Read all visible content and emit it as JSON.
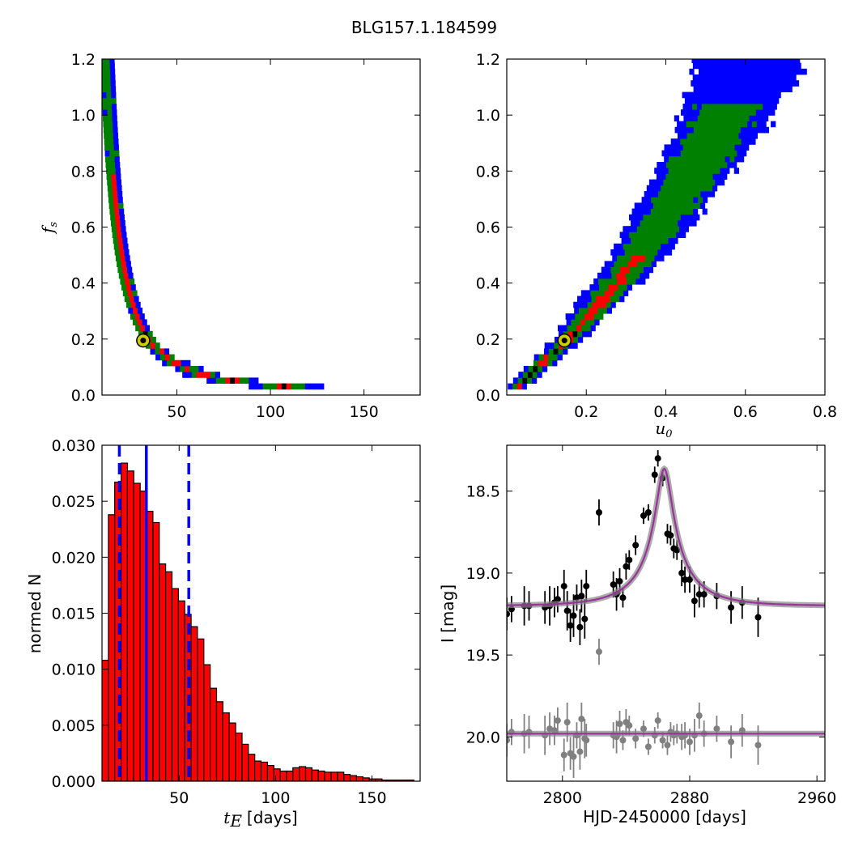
{
  "figure": {
    "title": "BLG157.1.184599"
  },
  "chart_data": [
    {
      "id": "tE-fs",
      "type": "heatmap",
      "xlabel": "",
      "ylabel": "f_s",
      "xlim": [
        10,
        180
      ],
      "ylim": [
        0,
        1.2
      ],
      "xticks": [
        50,
        100,
        150
      ],
      "xtick_labels": [
        "50",
        "100",
        "150"
      ],
      "yticks": [
        0,
        0.2,
        0.4,
        0.6,
        0.8,
        1.0,
        1.2
      ],
      "ytick_labels": [
        "0.0",
        "0.2",
        "0.4",
        "0.6",
        "0.8",
        "1.0",
        "1.2"
      ],
      "levels": [
        {
          "level": "outer",
          "color": "#0000ff"
        },
        {
          "level": "middle",
          "color": "#008000"
        },
        {
          "level": "inner",
          "color": "#ff0000"
        },
        {
          "level": "peak",
          "color": "#000000"
        }
      ],
      "curve": {
        "form": "fs = k / tE^p",
        "k": 60,
        "p": 1.62,
        "x_range": [
          12,
          176
        ]
      },
      "best_fit": {
        "x": 32,
        "y": 0.195
      }
    },
    {
      "id": "u0-fs",
      "type": "heatmap",
      "xlabel": "u_0",
      "ylabel": "",
      "xlim": [
        0,
        0.8
      ],
      "ylim": [
        0,
        1.2
      ],
      "xticks": [
        0.2,
        0.4,
        0.6,
        0.8
      ],
      "xtick_labels": [
        "0.2",
        "0.4",
        "0.6",
        "0.8"
      ],
      "yticks": [
        0,
        0.2,
        0.4,
        0.6,
        0.8,
        1.0,
        1.2
      ],
      "ytick_labels": [
        "0.0",
        "0.2",
        "0.4",
        "0.6",
        "0.8",
        "1.0",
        "1.2"
      ],
      "levels": [
        {
          "level": "outer",
          "color": "#0000ff"
        },
        {
          "level": "middle",
          "color": "#008000"
        },
        {
          "level": "inner",
          "color": "#ff0000"
        },
        {
          "level": "peak",
          "color": "#000000"
        }
      ],
      "ridge": [
        [
          0.02,
          0.03
        ],
        [
          0.15,
          0.2
        ],
        [
          0.3,
          0.45
        ],
        [
          0.4,
          0.65
        ],
        [
          0.5,
          0.88
        ],
        [
          0.6,
          1.15
        ]
      ],
      "best_fit": {
        "x": 0.145,
        "y": 0.195
      }
    },
    {
      "id": "tE-histogram",
      "type": "bar",
      "xlabel": "t_E",
      "xlabel_suffix": "[days]",
      "ylabel": "normed N",
      "xlim": [
        10,
        175
      ],
      "ylim": [
        0,
        0.03
      ],
      "xticks": [
        50,
        100,
        150
      ],
      "xtick_labels": [
        "50",
        "100",
        "150"
      ],
      "yticks": [
        0,
        0.005,
        0.01,
        0.015,
        0.02,
        0.025,
        0.03
      ],
      "ytick_labels": [
        "0.000",
        "0.005",
        "0.010",
        "0.015",
        "0.020",
        "0.025",
        "0.030"
      ],
      "bin_start": 10,
      "bin_width": 3.3,
      "values": [
        0.0108,
        0.0238,
        0.0267,
        0.0284,
        0.0277,
        0.0266,
        0.0259,
        0.0241,
        0.0231,
        0.0194,
        0.0187,
        0.0172,
        0.0161,
        0.0149,
        0.0138,
        0.0127,
        0.0104,
        0.0083,
        0.0071,
        0.0061,
        0.0052,
        0.0043,
        0.0033,
        0.0024,
        0.0018,
        0.0017,
        0.0014,
        0.0011,
        0.0009,
        0.0009,
        0.0012,
        0.0013,
        0.0012,
        0.001,
        0.0009,
        0.0008,
        0.0008,
        0.0008,
        0.0006,
        0.0005,
        0.0004,
        0.0003,
        0.0002,
        0.0002,
        0.0001,
        0.0001,
        0.0001,
        0.0001,
        0.0001
      ],
      "bar_color": "#ff0000",
      "median": 33,
      "interval": [
        19,
        55
      ],
      "line_color": "#0000ff"
    },
    {
      "id": "light-curve",
      "type": "scatter",
      "xlabel": "HJD-2450000 [days]",
      "ylabel": "I [mag]",
      "xlim": [
        2765,
        2965
      ],
      "ylim": [
        20.27,
        18.22
      ],
      "xticks": [
        2800,
        2880,
        2960
      ],
      "xtick_labels": [
        "2800",
        "2880",
        "2960"
      ],
      "yticks": [
        18.5,
        19.0,
        19.5,
        20.0
      ],
      "ytick_labels": [
        "18.5",
        "19.0",
        "19.5",
        "20.0"
      ],
      "model": {
        "t0": 2864,
        "tE": 33,
        "u0": 0.145,
        "fs": 0.195,
        "baseline": 19.2,
        "residual_baseline": 19.98,
        "color": "#993399"
      },
      "series": [
        {
          "name": "",
          "color": "#000000",
          "points": [
            [
              2765,
              19.25,
              0.1
            ],
            [
              2768,
              19.22,
              0.08
            ],
            [
              2776,
              19.2,
              0.12
            ],
            [
              2779,
              19.2,
              0.09
            ],
            [
              2789,
              19.21,
              0.1
            ],
            [
              2792,
              19.2,
              0.12
            ],
            [
              2795,
              19.18,
              0.09
            ],
            [
              2797,
              19.16,
              0.08
            ],
            [
              2801,
              19.08,
              0.1
            ],
            [
              2803,
              19.23,
              0.12
            ],
            [
              2805,
              19.32,
              0.1
            ],
            [
              2807,
              19.26,
              0.13
            ],
            [
              2809,
              19.15,
              0.08
            ],
            [
              2811,
              19.33,
              0.11
            ],
            [
              2812,
              19.14,
              0.1
            ],
            [
              2814,
              19.28,
              0.12
            ],
            [
              2815,
              19.08,
              0.1
            ],
            [
              2823,
              18.63,
              0.08
            ],
            [
              2832,
              19.07,
              0.08
            ],
            [
              2834,
              19.13,
              0.1
            ],
            [
              2836,
              19.05,
              0.08
            ],
            [
              2838,
              19.15,
              0.06
            ],
            [
              2840,
              18.96,
              0.08
            ],
            [
              2842,
              18.92,
              0.06
            ],
            [
              2846,
              18.83,
              0.06
            ],
            [
              2851,
              18.65,
              0.05
            ],
            [
              2854,
              18.63,
              0.05
            ],
            [
              2858,
              18.4,
              0.05
            ],
            [
              2860,
              18.3,
              0.05
            ],
            [
              2863,
              18.42,
              0.05
            ],
            [
              2866,
              18.76,
              0.06
            ],
            [
              2868,
              18.77,
              0.06
            ],
            [
              2870,
              18.85,
              0.06
            ],
            [
              2872,
              18.86,
              0.06
            ],
            [
              2875,
              19.0,
              0.08
            ],
            [
              2877,
              19.04,
              0.08
            ],
            [
              2880,
              19.04,
              0.08
            ],
            [
              2883,
              19.17,
              0.1
            ],
            [
              2886,
              19.13,
              0.08
            ],
            [
              2889,
              19.13,
              0.08
            ],
            [
              2897,
              19.14,
              0.08
            ],
            [
              2906,
              19.21,
              0.1
            ],
            [
              2913,
              19.18,
              0.1
            ],
            [
              2923,
              19.27,
              0.12
            ]
          ]
        },
        {
          "name": "",
          "color": "#808080",
          "points": [
            [
              2765,
              20.02,
              0.1
            ],
            [
              2768,
              19.97,
              0.08
            ],
            [
              2776,
              19.98,
              0.12
            ],
            [
              2779,
              19.97,
              0.1
            ],
            [
              2789,
              19.99,
              0.12
            ],
            [
              2792,
              19.95,
              0.1
            ],
            [
              2795,
              19.96,
              0.09
            ],
            [
              2797,
              19.9,
              0.08
            ],
            [
              2801,
              20.11,
              0.1
            ],
            [
              2803,
              19.91,
              0.12
            ],
            [
              2805,
              20.1,
              0.1
            ],
            [
              2807,
              20.12,
              0.13
            ],
            [
              2809,
              19.99,
              0.08
            ],
            [
              2811,
              20.09,
              0.11
            ],
            [
              2812,
              19.89,
              0.1
            ],
            [
              2814,
              20.01,
              0.12
            ],
            [
              2815,
              20.02,
              0.1
            ],
            [
              2823,
              19.48,
              0.08
            ],
            [
              2832,
              19.99,
              0.08
            ],
            [
              2834,
              20.0,
              0.1
            ],
            [
              2836,
              19.92,
              0.08
            ],
            [
              2838,
              20.02,
              0.06
            ],
            [
              2840,
              19.91,
              0.08
            ],
            [
              2842,
              19.93,
              0.06
            ],
            [
              2846,
              20.01,
              0.06
            ],
            [
              2851,
              19.95,
              0.05
            ],
            [
              2854,
              20.06,
              0.05
            ],
            [
              2858,
              19.99,
              0.05
            ],
            [
              2860,
              19.9,
              0.05
            ],
            [
              2863,
              20.02,
              0.05
            ],
            [
              2866,
              20.05,
              0.06
            ],
            [
              2868,
              19.97,
              0.06
            ],
            [
              2870,
              19.99,
              0.06
            ],
            [
              2872,
              19.98,
              0.06
            ],
            [
              2875,
              20.0,
              0.08
            ],
            [
              2877,
              19.99,
              0.08
            ],
            [
              2880,
              20.03,
              0.08
            ],
            [
              2883,
              19.99,
              0.1
            ],
            [
              2886,
              19.87,
              0.08
            ],
            [
              2889,
              19.98,
              0.08
            ],
            [
              2897,
              19.95,
              0.08
            ],
            [
              2906,
              20.03,
              0.1
            ],
            [
              2913,
              19.96,
              0.1
            ],
            [
              2923,
              20.05,
              0.12
            ]
          ]
        }
      ]
    }
  ]
}
